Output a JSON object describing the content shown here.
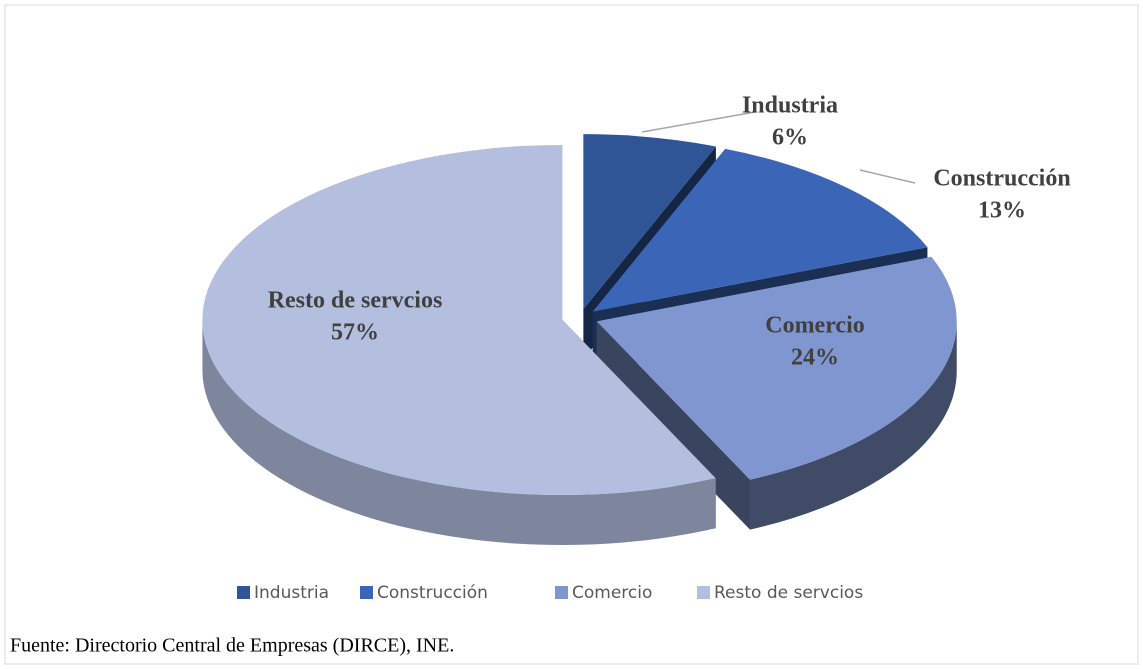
{
  "chart_data": {
    "type": "pie",
    "categories": [
      "Industria",
      "Construcción",
      "Comercio",
      "Resto de servcios"
    ],
    "values": [
      6,
      13,
      24,
      57
    ],
    "value_labels": [
      "6%",
      "13%",
      "24%",
      "57%"
    ],
    "colors": [
      "#2f5597",
      "#3b66b8",
      "#7f96d0",
      "#b4bfe0"
    ],
    "legend": "bottom",
    "source": "Fuente: Directorio Central de Empresas (DIRCE), INE."
  }
}
